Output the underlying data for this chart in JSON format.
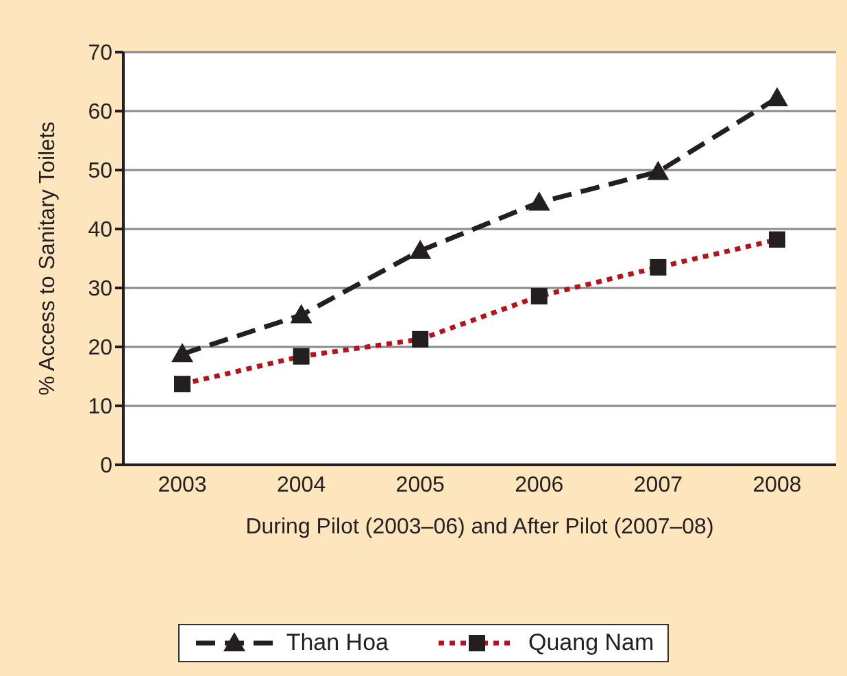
{
  "chart_data": {
    "type": "line",
    "xlabel": "During Pilot (2003–06) and After Pilot (2007–08)",
    "ylabel": "% Access to Sanitary Toilets",
    "categories": [
      "2003",
      "2004",
      "2005",
      "2006",
      "2007",
      "2008"
    ],
    "series": [
      {
        "name": "Than Hoa",
        "color": "#231f20",
        "marker": "triangle",
        "line_style": "dashed",
        "values": [
          18.8,
          25.4,
          36.3,
          44.5,
          49.7,
          62.2
        ]
      },
      {
        "name": "Quang Nam",
        "color": "#b5121b",
        "marker": "square",
        "line_style": "dotted",
        "values": [
          13.7,
          18.4,
          21.3,
          28.6,
          33.5,
          38.2
        ]
      }
    ],
    "ylim": [
      0,
      70
    ],
    "yticks": [
      0,
      10,
      20,
      30,
      40,
      50,
      60,
      70
    ],
    "grid": "y",
    "legend": "bottom"
  }
}
